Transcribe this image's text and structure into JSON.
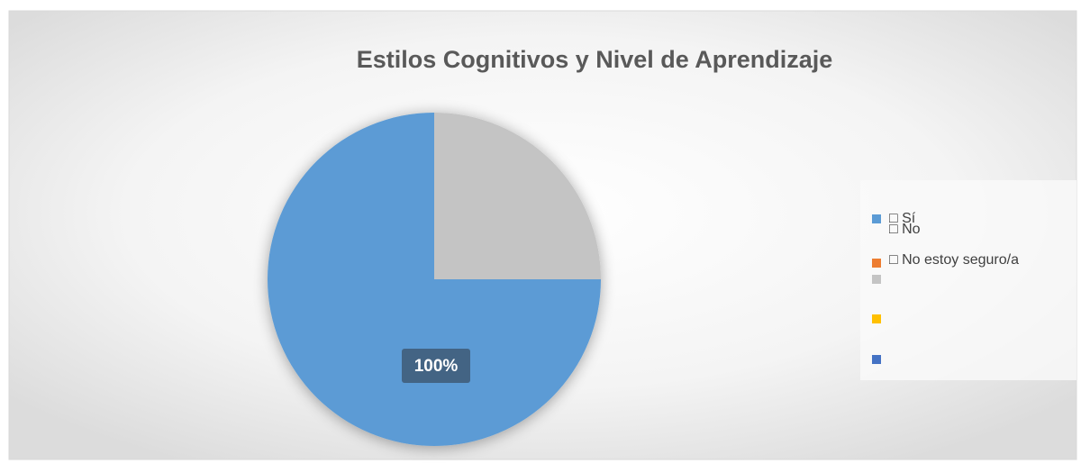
{
  "chart_data": {
    "type": "pie",
    "title": "Estilos Cognitivos y Nivel de Aprendizaje",
    "categories": [
      "□ Sí",
      "□ No",
      "□ No estoy seguro/a",
      null,
      null
    ],
    "values": [
      75,
      0,
      25,
      0,
      0
    ],
    "colors": [
      "#5b9bd5",
      "#ed7d31",
      "#c4c4c4",
      "#ffc000",
      "#4472c4"
    ],
    "annotations": [
      "100%"
    ],
    "legend": "right"
  }
}
